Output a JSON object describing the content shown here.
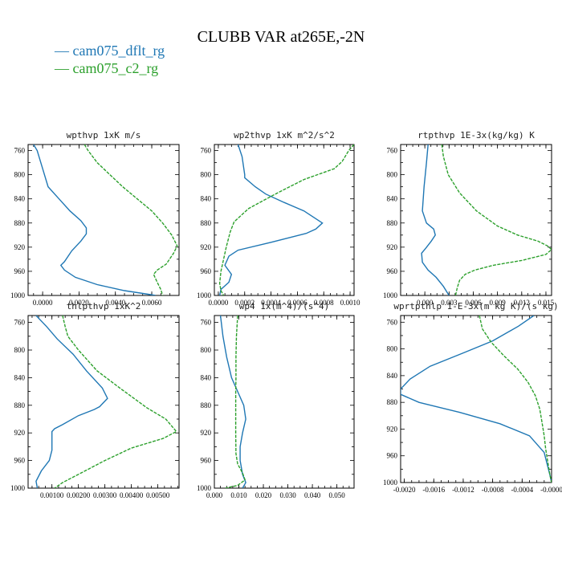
{
  "figure": {
    "title": "CLUBB VAR at265E,-2N",
    "legend": [
      {
        "label": "cam075_dflt_rg",
        "color": "#1f77b4"
      },
      {
        "label": "cam075_c2_rg",
        "color": "#2ca02c"
      }
    ]
  },
  "chart_data": [
    {
      "type": "line",
      "title": "wpthvp  1xK m/s",
      "xlim": [
        -0.0008,
        0.0075
      ],
      "ylim": [
        750,
        1000
      ],
      "y_inverted": true,
      "xticks": [
        "0.0000",
        "0.0020",
        "0.0040",
        "0.0060"
      ],
      "xtick_values": [
        0,
        0.002,
        0.004,
        0.006
      ],
      "yticks": [
        "760",
        "800",
        "840",
        "880",
        "920",
        "960",
        "1000"
      ],
      "series": [
        {
          "name": "cam075_dflt_rg",
          "color": "#1f77b4",
          "points": [
            [
              -0.0005,
              750
            ],
            [
              -0.0003,
              760
            ],
            [
              0,
              790
            ],
            [
              0.0003,
              820
            ],
            [
              0.0009,
              840
            ],
            [
              0.0015,
              860
            ],
            [
              0.0021,
              876
            ],
            [
              0.0024,
              888
            ],
            [
              0.0024,
              898
            ],
            [
              0.0021,
              910
            ],
            [
              0.0016,
              926
            ],
            [
              0.0012,
              944
            ],
            [
              0.001,
              950
            ],
            [
              0.0012,
              958
            ],
            [
              0.0018,
              970
            ],
            [
              0.003,
              982
            ],
            [
              0.0045,
              992
            ],
            [
              0.0058,
              998
            ],
            [
              0.0062,
              1000
            ]
          ]
        },
        {
          "name": "cam075_c2_rg",
          "color": "#2ca02c",
          "points": [
            [
              0.0023,
              750
            ],
            [
              0.0025,
              760
            ],
            [
              0.003,
              780
            ],
            [
              0.0037,
              800
            ],
            [
              0.0044,
              820
            ],
            [
              0.0052,
              840
            ],
            [
              0.006,
              860
            ],
            [
              0.0066,
              880
            ],
            [
              0.0071,
              900
            ],
            [
              0.0074,
              918
            ],
            [
              0.0072,
              930
            ],
            [
              0.0068,
              948
            ],
            [
              0.0063,
              958
            ],
            [
              0.0061,
              965
            ],
            [
              0.0063,
              978
            ],
            [
              0.0065,
              990
            ],
            [
              0.0066,
              1000
            ]
          ]
        }
      ]
    },
    {
      "type": "line",
      "title": "wp2thvp  1xK m^2/s^2",
      "xlim": [
        -3e-05,
        0.00103
      ],
      "ylim": [
        750,
        1000
      ],
      "y_inverted": true,
      "xticks": [
        "0.0000",
        "0.0002",
        "0.0004",
        "0.0006",
        "0.0008",
        "0.0010"
      ],
      "xtick_values": [
        0,
        0.0002,
        0.0004,
        0.0006,
        0.0008,
        0.001
      ],
      "yticks": [
        "760",
        "800",
        "840",
        "880",
        "920",
        "960",
        "1000"
      ],
      "series": [
        {
          "name": "cam075_dflt_rg",
          "color": "#1f77b4",
          "points": [
            [
              0.00015,
              750
            ],
            [
              0.00018,
              770
            ],
            [
              0.0002,
              800
            ],
            [
              0.0002,
              805
            ],
            [
              0.00028,
              820
            ],
            [
              0.00036,
              832
            ],
            [
              0.0005,
              846
            ],
            [
              0.00065,
              860
            ],
            [
              0.00079,
              880
            ],
            [
              0.00074,
              890
            ],
            [
              0.00067,
              897
            ],
            [
              0.0004,
              912
            ],
            [
              0.00015,
              925
            ],
            [
              8e-05,
              935
            ],
            [
              5e-05,
              950
            ],
            [
              0.0001,
              965
            ],
            [
              8e-05,
              978
            ],
            [
              2e-05,
              990
            ],
            [
              1e-05,
              1000
            ]
          ]
        },
        {
          "name": "cam075_c2_rg",
          "color": "#2ca02c",
          "points": [
            [
              0.00103,
              750
            ],
            [
              0.00099,
              760
            ],
            [
              0.00094,
              778
            ],
            [
              0.00088,
              790
            ],
            [
              0.00065,
              808
            ],
            [
              0.00045,
              830
            ],
            [
              0.00023,
              856
            ],
            [
              0.00012,
              878
            ],
            [
              9e-05,
              895
            ],
            [
              6e-05,
              920
            ],
            [
              4e-05,
              940
            ],
            [
              2e-05,
              960
            ],
            [
              1e-05,
              980
            ],
            [
              2e-05,
              992
            ],
            [
              4e-05,
              1000
            ]
          ]
        }
      ]
    },
    {
      "type": "line",
      "title": "rtpthvp  1E-3x(kg/kg) K",
      "xlim": [
        -0.003,
        0.0157
      ],
      "ylim": [
        750,
        1000
      ],
      "y_inverted": true,
      "xticks": [
        "0.000",
        "0.003",
        "0.006",
        "0.009",
        "0.012",
        "0.015"
      ],
      "xtick_values": [
        0,
        0.003,
        0.006,
        0.009,
        0.012,
        0.015
      ],
      "yticks": [
        "760",
        "800",
        "840",
        "880",
        "920",
        "960",
        "1000"
      ],
      "series": [
        {
          "name": "cam075_dflt_rg",
          "color": "#1f77b4",
          "points": [
            [
              0.0004,
              750
            ],
            [
              0.0002,
              780
            ],
            [
              -0.0001,
              820
            ],
            [
              -0.0003,
              860
            ],
            [
              0.0002,
              880
            ],
            [
              0.0011,
              890
            ],
            [
              0.0013,
              900
            ],
            [
              0.0008,
              910
            ],
            [
              0.0001,
              922
            ],
            [
              -0.0004,
              930
            ],
            [
              -0.0003,
              945
            ],
            [
              0.0004,
              958
            ],
            [
              0.0014,
              970
            ],
            [
              0.0023,
              985
            ],
            [
              0.003,
              1000
            ]
          ]
        },
        {
          "name": "cam075_c2_rg",
          "color": "#2ca02c",
          "points": [
            [
              0.0021,
              750
            ],
            [
              0.0023,
              770
            ],
            [
              0.0029,
              800
            ],
            [
              0.0043,
              830
            ],
            [
              0.0064,
              860
            ],
            [
              0.009,
              885
            ],
            [
              0.0115,
              900
            ],
            [
              0.014,
              910
            ],
            [
              0.0152,
              918
            ],
            [
              0.0157,
              924
            ],
            [
              0.015,
              932
            ],
            [
              0.012,
              942
            ],
            [
              0.0085,
              950
            ],
            [
              0.0062,
              958
            ],
            [
              0.005,
              965
            ],
            [
              0.0043,
              975
            ],
            [
              0.004,
              988
            ],
            [
              0.0038,
              1000
            ]
          ]
        }
      ]
    },
    {
      "type": "line",
      "title": "thlpthvp  1xK^2",
      "xlim": [
        0.0001,
        0.0058
      ],
      "ylim": [
        750,
        1000
      ],
      "y_inverted": true,
      "xticks": [
        "0.00100",
        "0.00200",
        "0.00300",
        "0.00400",
        "0.00500"
      ],
      "xtick_values": [
        0.001,
        0.002,
        0.003,
        0.004,
        0.005
      ],
      "yticks": [
        "760",
        "800",
        "840",
        "880",
        "920",
        "960",
        "1000"
      ],
      "series": [
        {
          "name": "cam075_dflt_rg",
          "color": "#1f77b4",
          "points": [
            [
              0.0004,
              750
            ],
            [
              0.0008,
              766
            ],
            [
              0.0012,
              784
            ],
            [
              0.0018,
              806
            ],
            [
              0.0023,
              830
            ],
            [
              0.0029,
              855
            ],
            [
              0.0031,
              870
            ],
            [
              0.0028,
              882
            ],
            [
              0.0026,
              886
            ],
            [
              0.002,
              895
            ],
            [
              0.0014,
              908
            ],
            [
              0.0011,
              914
            ],
            [
              0.001,
              918
            ],
            [
              0.001,
              945
            ],
            [
              0.0009,
              960
            ],
            [
              0.0006,
              975
            ],
            [
              0.0004,
              990
            ],
            [
              0.00045,
              1000
            ]
          ]
        },
        {
          "name": "cam075_c2_rg",
          "color": "#2ca02c",
          "points": [
            [
              0.0014,
              750
            ],
            [
              0.0015,
              766
            ],
            [
              0.0016,
              780
            ],
            [
              0.002,
              800
            ],
            [
              0.0027,
              830
            ],
            [
              0.0036,
              856
            ],
            [
              0.0046,
              884
            ],
            [
              0.0053,
              900
            ],
            [
              0.0057,
              918
            ],
            [
              0.0052,
              928
            ],
            [
              0.004,
              942
            ],
            [
              0.003,
              960
            ],
            [
              0.0022,
              976
            ],
            [
              0.0014,
              992
            ],
            [
              0.0011,
              1000
            ]
          ]
        }
      ]
    },
    {
      "type": "line",
      "title": "wp4  1x(m^4)/(s^4)",
      "xlim": [
        0,
        0.057
      ],
      "ylim": [
        750,
        1000
      ],
      "y_inverted": true,
      "xticks": [
        "0.000",
        "0.010",
        "0.020",
        "0.030",
        "0.040",
        "0.050"
      ],
      "xtick_values": [
        0,
        0.01,
        0.02,
        0.03,
        0.04,
        0.05
      ],
      "yticks": [
        "760",
        "800",
        "840",
        "880",
        "920",
        "960",
        "1000"
      ],
      "series": [
        {
          "name": "cam075_dflt_rg",
          "color": "#1f77b4",
          "points": [
            [
              0.0025,
              750
            ],
            [
              0.0035,
              780
            ],
            [
              0.005,
              810
            ],
            [
              0.007,
              840
            ],
            [
              0.0095,
              860
            ],
            [
              0.012,
              880
            ],
            [
              0.0128,
              900
            ],
            [
              0.0115,
              920
            ],
            [
              0.0105,
              940
            ],
            [
              0.0105,
              960
            ],
            [
              0.0115,
              980
            ],
            [
              0.0128,
              992
            ],
            [
              0.0115,
              1000
            ]
          ]
        },
        {
          "name": "cam075_c2_rg",
          "color": "#2ca02c",
          "points": [
            [
              0.0095,
              750
            ],
            [
              0.009,
              780
            ],
            [
              0.0088,
              810
            ],
            [
              0.0088,
              840
            ],
            [
              0.0087,
              860
            ],
            [
              0.0087,
              880
            ],
            [
              0.0087,
              920
            ],
            [
              0.0088,
              950
            ],
            [
              0.0095,
              965
            ],
            [
              0.0115,
              978
            ],
            [
              0.0125,
              988
            ],
            [
              0.0095,
              996
            ],
            [
              0.0045,
              1000
            ]
          ]
        }
      ]
    },
    {
      "type": "line",
      "title": "wprtpthlp  1-E-3x(m kg K)/(s kg)",
      "xlim": [
        -0.00205,
        0.0
      ],
      "ylim": [
        750,
        1000
      ],
      "y_inverted": true,
      "xticks": [
        "-0.0020",
        "-0.0016",
        "-0.0012",
        "-0.0008",
        "-0.0004",
        "-0.0000"
      ],
      "xtick_values": [
        -0.002,
        -0.0016,
        -0.0012,
        -0.0008,
        -0.0004,
        0
      ],
      "yticks": [
        "760",
        "800",
        "840",
        "880",
        "920",
        "960",
        "1000"
      ],
      "series": [
        {
          "name": "cam075_dflt_rg",
          "color": "#1f77b4",
          "points": [
            [
              -0.00024,
              750
            ],
            [
              -0.00045,
              766
            ],
            [
              -0.0008,
              788
            ],
            [
              -0.0012,
              806
            ],
            [
              -0.00165,
              826
            ],
            [
              -0.00192,
              845
            ],
            [
              -0.00205,
              860
            ],
            [
              -0.00205,
              868
            ],
            [
              -0.0018,
              880
            ],
            [
              -0.00125,
              895
            ],
            [
              -0.0007,
              912
            ],
            [
              -0.0003,
              930
            ],
            [
              -0.0001,
              955
            ],
            [
              -2e-05,
              990
            ],
            [
              0.0,
              1000
            ]
          ]
        },
        {
          "name": "cam075_c2_rg",
          "color": "#2ca02c",
          "points": [
            [
              -0.00098,
              750
            ],
            [
              -0.00094,
              770
            ],
            [
              -0.00082,
              790
            ],
            [
              -0.00065,
              810
            ],
            [
              -0.00046,
              830
            ],
            [
              -0.00032,
              850
            ],
            [
              -0.00022,
              870
            ],
            [
              -0.00016,
              890
            ],
            [
              -0.00013,
              910
            ],
            [
              -0.0001,
              930
            ],
            [
              -8e-05,
              950
            ],
            [
              -5e-05,
              970
            ],
            [
              -2e-05,
              990
            ],
            [
              0.0,
              1000
            ]
          ]
        }
      ]
    }
  ]
}
